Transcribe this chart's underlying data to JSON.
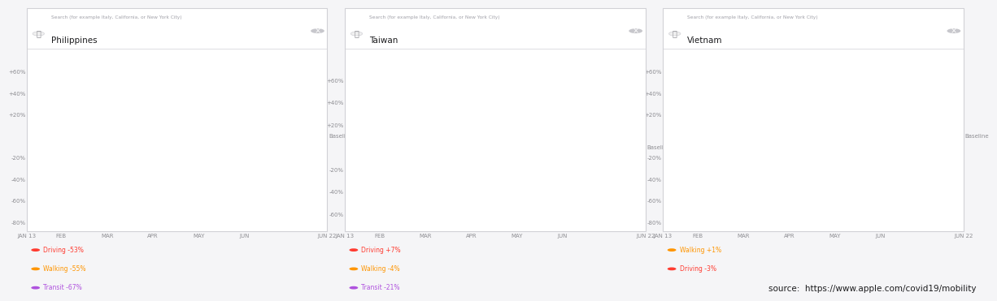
{
  "panels": [
    {
      "country": "Philippines",
      "ylim": [
        -88,
        78
      ],
      "yticks": [
        -80,
        -60,
        -40,
        -20,
        0,
        20,
        40,
        60
      ],
      "ytick_labels": [
        "-80%",
        "-60%",
        "-40%",
        "-20%",
        "",
        "+20%",
        "+40%",
        "+60%"
      ],
      "legend": [
        {
          "label": "Driving -53%",
          "color": "#FF3B30"
        },
        {
          "label": "Walking -55%",
          "color": "#FF9500"
        },
        {
          "label": "Transit -67%",
          "color": "#AF52DE"
        }
      ]
    },
    {
      "country": "Taiwan",
      "ylim": [
        -75,
        85
      ],
      "yticks": [
        -60,
        -40,
        -20,
        0,
        20,
        40,
        60
      ],
      "ytick_labels": [
        "-60%",
        "-40%",
        "-20%",
        "",
        "+20%",
        "+40%",
        "+60%"
      ],
      "legend": [
        {
          "label": "Driving +7%",
          "color": "#FF3B30"
        },
        {
          "label": "Walking -4%",
          "color": "#FF9500"
        },
        {
          "label": "Transit -21%",
          "color": "#AF52DE"
        }
      ]
    },
    {
      "country": "Vietnam",
      "ylim": [
        -88,
        78
      ],
      "yticks": [
        -80,
        -60,
        -40,
        -20,
        0,
        20,
        40,
        60
      ],
      "ytick_labels": [
        "-80%",
        "-60%",
        "-40%",
        "-20%",
        "",
        "+20%",
        "+40%",
        "+60%"
      ],
      "legend": [
        {
          "label": "Walking +1%",
          "color": "#FF9500"
        },
        {
          "label": "Driving -3%",
          "color": "#FF3B30"
        }
      ]
    }
  ],
  "xtick_labels": [
    "JAN 13",
    "FEB",
    "MAR",
    "APR",
    "MAY",
    "JUN",
    "JUN 22"
  ],
  "xtick_pos": [
    0,
    0.115,
    0.268,
    0.42,
    0.572,
    0.724,
    1.0
  ],
  "background_color": "#f5f5f7",
  "panel_bg": "#ffffff",
  "border_color": "#d1d1d6",
  "source_text": "source:  https://www.apple.com/covid19/mobility",
  "search_placeholder": "Search (for example Italy, California, or New York City)",
  "baseline_color": "#8e8e93",
  "grid_color": "#e5e5ea",
  "text_color": "#1c1c1e"
}
